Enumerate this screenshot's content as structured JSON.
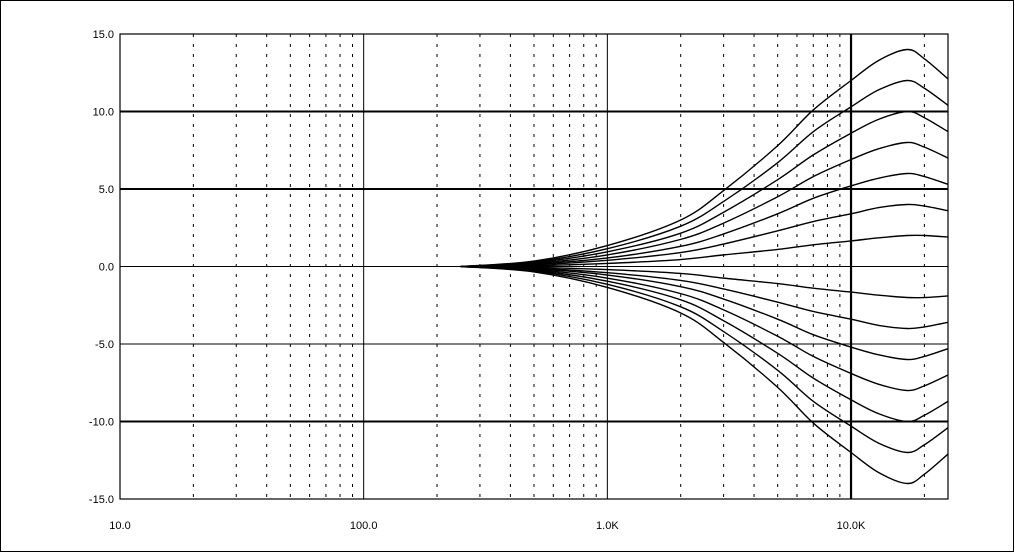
{
  "chart_data": {
    "type": "line",
    "title": "",
    "xlabel": "",
    "ylabel": "",
    "xscale": "log",
    "xlim": [
      10,
      25000
    ],
    "ylim": [
      -15,
      15
    ],
    "grid": true,
    "x_tick_labels": [
      "10.0",
      "100.0",
      "1.0K",
      "10.0K"
    ],
    "x_ticks": [
      10,
      100,
      1000,
      10000
    ],
    "y_tick_labels": [
      "15.0",
      "10.0",
      "5.0",
      "0.0",
      "-5.0",
      "-10.0",
      "-15.0"
    ],
    "y_ticks": [
      15,
      10,
      5,
      0,
      -5,
      -10,
      -15
    ],
    "x": [
      250,
      500,
      1000,
      2000,
      3000,
      5000,
      7000,
      10000,
      13000,
      17000,
      20000,
      25000
    ],
    "series": [
      {
        "values": [
          0.0,
          0.05,
          0.2,
          0.45,
          0.75,
          1.1,
          1.4,
          1.65,
          1.85,
          2.0,
          2.0,
          1.9
        ]
      },
      {
        "values": [
          0.0,
          0.1,
          0.4,
          0.9,
          1.45,
          2.3,
          2.9,
          3.4,
          3.8,
          4.0,
          3.9,
          3.6
        ]
      },
      {
        "values": [
          0.0,
          0.15,
          0.55,
          1.3,
          2.1,
          3.4,
          4.4,
          5.2,
          5.7,
          6.0,
          5.8,
          5.3
        ]
      },
      {
        "values": [
          0.0,
          0.2,
          0.75,
          1.75,
          2.8,
          4.5,
          5.8,
          6.9,
          7.6,
          8.0,
          7.7,
          7.0
        ]
      },
      {
        "values": [
          0.0,
          0.25,
          0.95,
          2.15,
          3.5,
          5.6,
          7.2,
          8.6,
          9.5,
          10.0,
          9.6,
          8.7
        ]
      },
      {
        "values": [
          0.0,
          0.3,
          1.15,
          2.6,
          4.2,
          6.7,
          8.7,
          10.3,
          11.4,
          12.0,
          11.5,
          10.4
        ]
      },
      {
        "values": [
          0.0,
          0.35,
          1.35,
          3.0,
          4.9,
          7.8,
          10.1,
          12.0,
          13.3,
          14.0,
          13.4,
          12.1
        ]
      },
      {
        "values": [
          0.0,
          -0.05,
          -0.2,
          -0.45,
          -0.75,
          -1.1,
          -1.4,
          -1.65,
          -1.85,
          -2.0,
          -2.0,
          -1.9
        ]
      },
      {
        "values": [
          0.0,
          -0.1,
          -0.4,
          -0.9,
          -1.45,
          -2.3,
          -2.9,
          -3.4,
          -3.8,
          -4.0,
          -3.9,
          -3.6
        ]
      },
      {
        "values": [
          0.0,
          -0.15,
          -0.55,
          -1.3,
          -2.1,
          -3.4,
          -4.4,
          -5.2,
          -5.7,
          -6.0,
          -5.8,
          -5.3
        ]
      },
      {
        "values": [
          0.0,
          -0.2,
          -0.75,
          -1.75,
          -2.8,
          -4.5,
          -5.8,
          -6.9,
          -7.6,
          -8.0,
          -7.7,
          -7.0
        ]
      },
      {
        "values": [
          0.0,
          -0.25,
          -0.95,
          -2.15,
          -3.5,
          -5.6,
          -7.2,
          -8.6,
          -9.5,
          -10.0,
          -9.6,
          -8.7
        ]
      },
      {
        "values": [
          0.0,
          -0.3,
          -1.15,
          -2.6,
          -4.2,
          -6.7,
          -8.7,
          -10.3,
          -11.4,
          -12.0,
          -11.5,
          -10.4
        ]
      },
      {
        "values": [
          0.0,
          -0.35,
          -1.35,
          -3.0,
          -4.9,
          -7.8,
          -10.1,
          -12.0,
          -13.3,
          -14.0,
          -13.4,
          -12.1
        ]
      }
    ]
  }
}
